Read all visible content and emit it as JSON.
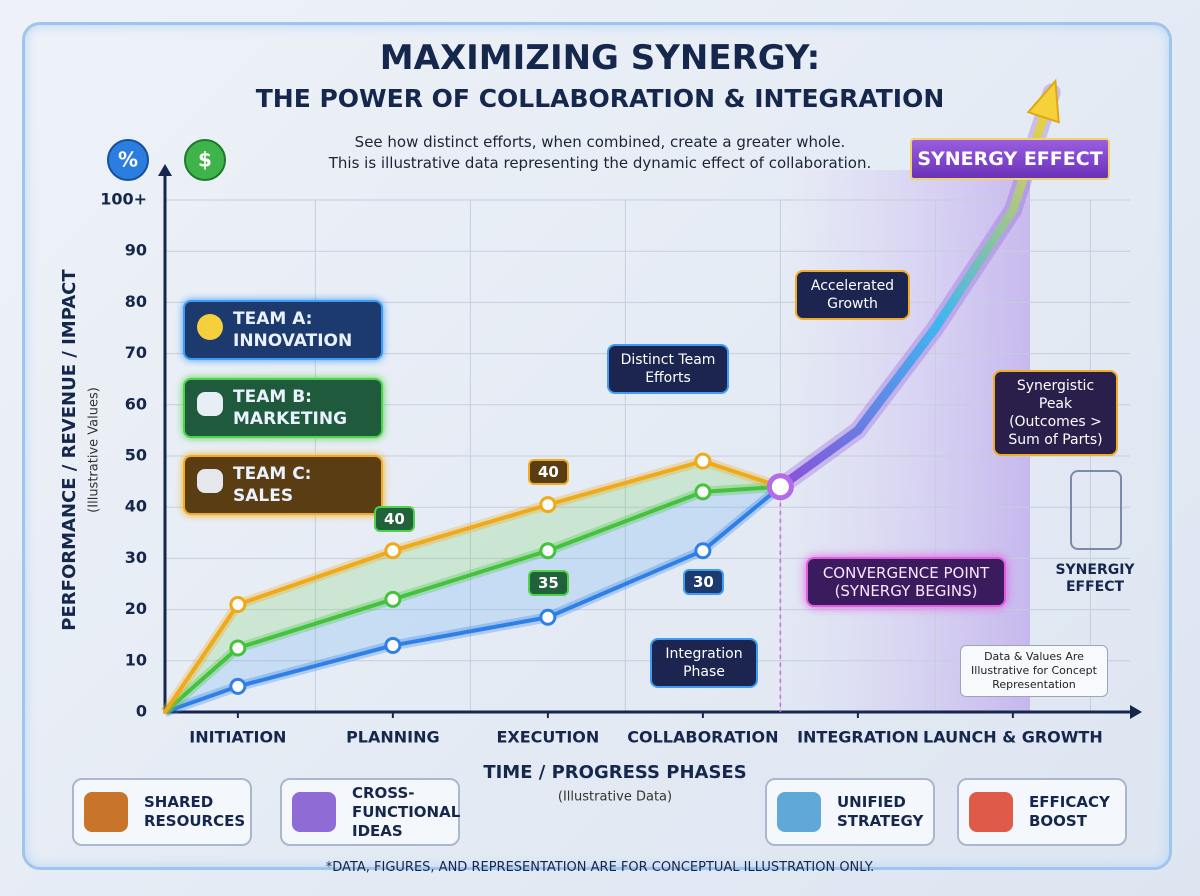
{
  "header": {
    "title": "MAXIMIZING SYNERGY:",
    "subtitle": "THE POWER OF COLLABORATION & INTEGRATION",
    "description": [
      "See how distinct efforts, when combined, create a greater whole.",
      "This is illustrative data representing the dynamic effect of collaboration."
    ],
    "icons": [
      "%",
      "$"
    ]
  },
  "chart_data": {
    "type": "line",
    "x": [
      0.53,
      1,
      2,
      3,
      4,
      4.5,
      5,
      5.5,
      6,
      6.25
    ],
    "xlim": [
      0.53,
      6.82
    ],
    "xticks": [
      {
        "value": 1,
        "label": "INITIATION"
      },
      {
        "value": 2,
        "label": "PLANNING"
      },
      {
        "value": 3,
        "label": "EXECUTION"
      },
      {
        "value": 4,
        "label": "COLLABORATION"
      },
      {
        "value": 5,
        "label": "INTEGRATION"
      },
      {
        "value": 6,
        "label": "LAUNCH & GROWTH"
      }
    ],
    "ylim": [
      0,
      100
    ],
    "yticks": [
      0,
      10,
      20,
      30,
      40,
      50,
      60,
      70,
      80,
      90,
      {
        "value": 100,
        "label": "100+"
      }
    ],
    "grid": true,
    "y_label": "PERFORMANCE / REVENUE / IMPACT",
    "y_sublabel": "(Illustrative Values)",
    "x_label": "TIME / PROGRESS PHASES",
    "x_sublabel": "(Illustrative Data)",
    "series": [
      {
        "name": "TEAM A: INNOVATION",
        "color": "#2f80e6",
        "values": [
          0,
          5,
          13,
          18.5,
          31.5,
          44,
          null,
          null,
          null,
          null
        ]
      },
      {
        "name": "TEAM B: MARKETING",
        "color": "#45c23c",
        "values": [
          0,
          12.5,
          22,
          31.5,
          43,
          44,
          null,
          null,
          null,
          null
        ]
      },
      {
        "name": "TEAM C: SALES",
        "color": "#f0a919",
        "values": [
          0,
          21,
          31.5,
          40.5,
          49,
          44,
          null,
          null,
          null,
          null
        ]
      },
      {
        "name": "SYNERGY EFFECT",
        "color": "#8b4fd9",
        "values": [
          null,
          null,
          null,
          null,
          null,
          44,
          55,
          75,
          98,
          121
        ]
      }
    ],
    "annotations": [
      "40",
      "40",
      "35",
      "30"
    ]
  },
  "callouts": [
    "Accelerated Growth",
    "Distinct Team Efforts",
    "Synergistic Peak (Outcomes > Sum of Parts)",
    "CONVERGENCE POINT (SYNERGY BEGINS)",
    "Integration Phase",
    "SYNERGIY EFFECT",
    "Data & Values Are Illustrative for Concept Representation"
  ],
  "cards": [
    "SHARED RESOURCES",
    "CROSS-FUNCTIONAL IDEAS",
    "UNIFIED STRATEGY",
    "EFFICACY BOOST"
  ],
  "footer": "*DATA, FIGURES, AND REPRESENTATION ARE FOR CONCEPTUAL ILLUSTRATION ONLY."
}
